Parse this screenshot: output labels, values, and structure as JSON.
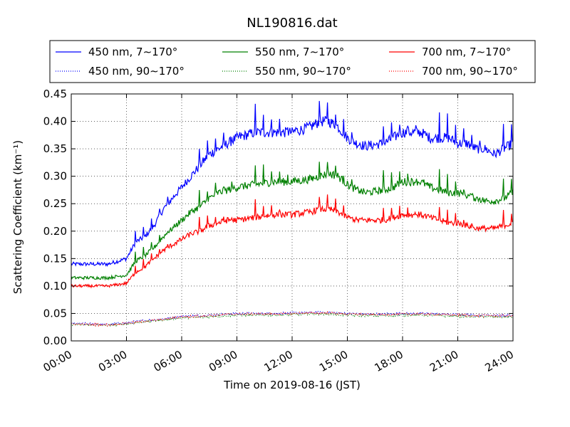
{
  "chart_data": {
    "type": "line",
    "title": "NL190816.dat",
    "xlabel": "Time on 2019-08-16 (JST)",
    "ylabel": "Scattering Coefficient (km⁻¹)",
    "x_unit": "hours",
    "xlim": [
      0,
      24
    ],
    "ylim": [
      0.0,
      0.45
    ],
    "x_ticks": [
      0,
      3,
      6,
      9,
      12,
      15,
      18,
      21,
      24
    ],
    "x_tick_labels": [
      "00:00",
      "03:00",
      "06:00",
      "09:00",
      "12:00",
      "15:00",
      "18:00",
      "21:00",
      "24:00"
    ],
    "y_ticks": [
      0.0,
      0.05,
      0.1,
      0.15,
      0.2,
      0.25,
      0.3,
      0.35,
      0.4,
      0.45
    ],
    "y_tick_labels": [
      "0.00",
      "0.05",
      "0.10",
      "0.15",
      "0.20",
      "0.25",
      "0.30",
      "0.35",
      "0.40",
      "0.45"
    ],
    "grid": true,
    "legend_placement": "top",
    "series": [
      {
        "name": "450 nm, 7∼170°",
        "color": "#0000ff",
        "style": "solid",
        "x": [
          0,
          1,
          2,
          3,
          3.5,
          4,
          4.5,
          5,
          5.5,
          6,
          6.5,
          7,
          7.5,
          8,
          8.5,
          9,
          10,
          11,
          12,
          13,
          13.5,
          14,
          14.5,
          15,
          15.5,
          16,
          17,
          17.5,
          18,
          18.5,
          19,
          19.5,
          20,
          20.5,
          21,
          21.5,
          22,
          22.5,
          23,
          23.5,
          24
        ],
        "y": [
          0.14,
          0.14,
          0.14,
          0.15,
          0.18,
          0.19,
          0.21,
          0.24,
          0.26,
          0.28,
          0.3,
          0.32,
          0.34,
          0.35,
          0.36,
          0.37,
          0.38,
          0.38,
          0.38,
          0.39,
          0.4,
          0.4,
          0.39,
          0.37,
          0.36,
          0.355,
          0.36,
          0.37,
          0.38,
          0.38,
          0.38,
          0.37,
          0.37,
          0.37,
          0.36,
          0.36,
          0.35,
          0.35,
          0.34,
          0.35,
          0.36
        ]
      },
      {
        "name": "450 nm, 90∼170°",
        "color": "#0000ff",
        "style": "dotted",
        "x": [
          0,
          1,
          2,
          3,
          4,
          5,
          6,
          7,
          8,
          9,
          10,
          11,
          12,
          13,
          14,
          15,
          16,
          17,
          18,
          19,
          20,
          21,
          22,
          23,
          24
        ],
        "y": [
          0.032,
          0.031,
          0.03,
          0.033,
          0.037,
          0.04,
          0.045,
          0.046,
          0.048,
          0.05,
          0.05,
          0.05,
          0.051,
          0.052,
          0.052,
          0.05,
          0.049,
          0.049,
          0.05,
          0.05,
          0.049,
          0.048,
          0.047,
          0.047,
          0.046
        ]
      },
      {
        "name": "550 nm, 7∼170°",
        "color": "#008000",
        "style": "solid",
        "x": [
          0,
          1,
          2,
          3,
          3.5,
          4,
          4.5,
          5,
          5.5,
          6,
          6.5,
          7,
          7.5,
          8,
          8.5,
          9,
          10,
          11,
          12,
          13,
          13.5,
          14,
          14.5,
          15,
          15.5,
          16,
          17,
          17.5,
          18,
          18.5,
          19,
          19.5,
          20,
          20.5,
          21,
          21.5,
          22,
          22.5,
          23,
          23.5,
          24
        ],
        "y": [
          0.115,
          0.115,
          0.115,
          0.12,
          0.145,
          0.155,
          0.17,
          0.19,
          0.205,
          0.22,
          0.235,
          0.245,
          0.26,
          0.27,
          0.275,
          0.28,
          0.285,
          0.29,
          0.29,
          0.295,
          0.3,
          0.305,
          0.3,
          0.285,
          0.275,
          0.27,
          0.275,
          0.28,
          0.29,
          0.29,
          0.29,
          0.28,
          0.275,
          0.27,
          0.27,
          0.265,
          0.26,
          0.255,
          0.255,
          0.26,
          0.27
        ]
      },
      {
        "name": "550 nm, 90∼170°",
        "color": "#008000",
        "style": "dotted",
        "x": [
          0,
          1,
          2,
          3,
          4,
          5,
          6,
          7,
          8,
          9,
          10,
          11,
          12,
          13,
          14,
          15,
          16,
          17,
          18,
          19,
          20,
          21,
          22,
          23,
          24
        ],
        "y": [
          0.03,
          0.029,
          0.028,
          0.031,
          0.035,
          0.038,
          0.042,
          0.043,
          0.045,
          0.047,
          0.047,
          0.047,
          0.048,
          0.049,
          0.049,
          0.047,
          0.046,
          0.046,
          0.047,
          0.047,
          0.046,
          0.045,
          0.044,
          0.044,
          0.043
        ]
      },
      {
        "name": "700 nm, 7∼170°",
        "color": "#ff0000",
        "style": "solid",
        "x": [
          0,
          1,
          2,
          3,
          3.5,
          4,
          4.5,
          5,
          5.5,
          6,
          6.5,
          7,
          7.5,
          8,
          8.5,
          9,
          10,
          11,
          12,
          13,
          13.5,
          14,
          14.5,
          15,
          15.5,
          16,
          17,
          17.5,
          18,
          18.5,
          19,
          19.5,
          20,
          20.5,
          21,
          21.5,
          22,
          22.5,
          23,
          23.5,
          24
        ],
        "y": [
          0.1,
          0.1,
          0.1,
          0.105,
          0.125,
          0.135,
          0.15,
          0.165,
          0.175,
          0.185,
          0.195,
          0.2,
          0.21,
          0.215,
          0.22,
          0.22,
          0.225,
          0.23,
          0.23,
          0.235,
          0.24,
          0.24,
          0.235,
          0.225,
          0.22,
          0.22,
          0.22,
          0.225,
          0.23,
          0.23,
          0.23,
          0.225,
          0.22,
          0.215,
          0.215,
          0.21,
          0.205,
          0.205,
          0.205,
          0.21,
          0.215
        ]
      },
      {
        "name": "700 nm, 90∼170°",
        "color": "#ff0000",
        "style": "dotted",
        "x": [
          0,
          1,
          2,
          3,
          4,
          5,
          6,
          7,
          8,
          9,
          10,
          11,
          12,
          13,
          14,
          15,
          16,
          17,
          18,
          19,
          20,
          21,
          22,
          23,
          24
        ],
        "y": [
          0.031,
          0.03,
          0.029,
          0.032,
          0.036,
          0.039,
          0.044,
          0.045,
          0.047,
          0.049,
          0.049,
          0.049,
          0.05,
          0.051,
          0.051,
          0.049,
          0.048,
          0.048,
          0.049,
          0.049,
          0.048,
          0.047,
          0.046,
          0.046,
          0.045
        ]
      }
    ]
  }
}
